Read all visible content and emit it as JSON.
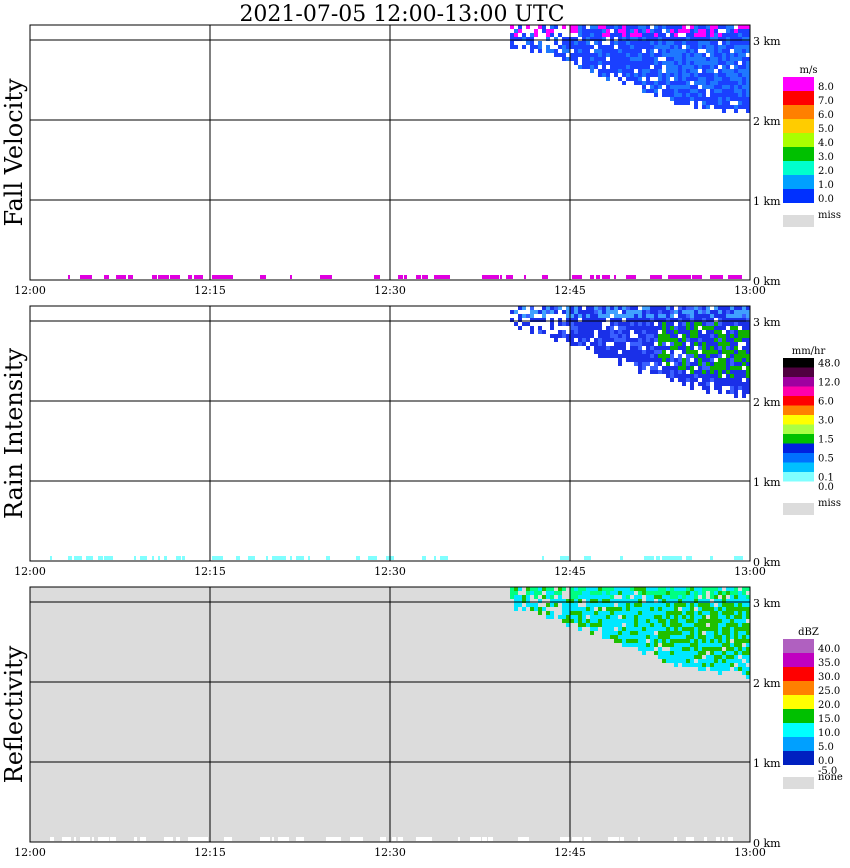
{
  "title": "2021-07-05   12:00-13:00 UTC",
  "x_ticks": [
    "12:00",
    "12:15",
    "12:30",
    "12:45",
    "13:00"
  ],
  "y_ticks": [
    "0 km",
    "1 km",
    "2 km",
    "3 km"
  ],
  "panels": [
    {
      "name": "fall-velocity",
      "ylabel": "Fall Velocity",
      "unit": "m/s",
      "background": "#ffffff",
      "colorbar": [
        {
          "color": "#ff00ff",
          "label": "8.0"
        },
        {
          "color": "#ff0000",
          "label": "7.0"
        },
        {
          "color": "#ff8000",
          "label": "6.0"
        },
        {
          "color": "#ffcc00",
          "label": "5.0"
        },
        {
          "color": "#aaff00",
          "label": "4.0"
        },
        {
          "color": "#00c000",
          "label": "3.0"
        },
        {
          "color": "#00ffcc",
          "label": "2.0"
        },
        {
          "color": "#00a0ff",
          "label": "1.0"
        },
        {
          "color": "#0030ff",
          "label": "0.0"
        }
      ],
      "miss_label": "miss",
      "echo_main": "#1a40ff",
      "echo_alt": "#1e78ff",
      "echo_top": "#ff00ff",
      "surface_color": "#e000e0"
    },
    {
      "name": "rain-intensity",
      "ylabel": "Rain Intensity",
      "unit": "mm/hr",
      "background": "#ffffff",
      "colorbar": [
        {
          "color": "#000000",
          "label": "48.0"
        },
        {
          "color": "#500040",
          "label": ""
        },
        {
          "color": "#a000a0",
          "label": "12.0"
        },
        {
          "color": "#ff00aa",
          "label": ""
        },
        {
          "color": "#ff0000",
          "label": "6.0"
        },
        {
          "color": "#ff8000",
          "label": ""
        },
        {
          "color": "#ffff00",
          "label": "3.0"
        },
        {
          "color": "#aaff44",
          "label": ""
        },
        {
          "color": "#00c000",
          "label": "1.5"
        },
        {
          "color": "#0020e0",
          "label": ""
        },
        {
          "color": "#0070ff",
          "label": "0.5"
        },
        {
          "color": "#00c0ff",
          "label": ""
        },
        {
          "color": "#80ffff",
          "label": "0.1"
        },
        {
          "color": "#ffffff",
          "label": "0.0"
        }
      ],
      "miss_label": "miss",
      "echo_main": "#1a30e8",
      "echo_alt": "#10b000",
      "echo_top": "#40a0ff",
      "surface_color": "#80ffff"
    },
    {
      "name": "reflectivity",
      "ylabel": "Reflectivity",
      "unit": "dBZ",
      "background": "#dcdcdc",
      "colorbar": [
        {
          "color": "#b060c0",
          "label": "40.0"
        },
        {
          "color": "#c000c0",
          "label": "35.0"
        },
        {
          "color": "#ff0000",
          "label": "30.0"
        },
        {
          "color": "#ff8000",
          "label": "25.0"
        },
        {
          "color": "#ffff00",
          "label": "20.0"
        },
        {
          "color": "#00c000",
          "label": "15.0"
        },
        {
          "color": "#00ffff",
          "label": "10.0"
        },
        {
          "color": "#00a0ff",
          "label": "5.0"
        },
        {
          "color": "#0020c0",
          "label": "0.0"
        }
      ],
      "bottom_label": "-5.0",
      "miss_label": "none",
      "echo_main": "#00e8ff",
      "echo_alt": "#20c000",
      "echo_top": "#00ff80",
      "surface_color": "#ffffff"
    }
  ],
  "chart_data": {
    "type": "heatmap",
    "title": "2021-07-05   12:00-13:00 UTC",
    "x_range_utc": [
      "12:00",
      "13:00"
    ],
    "y_range_km": [
      0,
      3.2
    ],
    "panels": [
      "Fall Velocity (m/s)",
      "Rain Intensity (mm/hr)",
      "Reflectivity (dBZ)"
    ],
    "echo_start_min": 40,
    "echo_base_km": {
      "minutes": [
        40,
        45,
        50,
        55,
        60
      ],
      "base_km": [
        2.95,
        2.75,
        2.45,
        2.22,
        2.1
      ]
    },
    "echo_top_km": 3.2
  }
}
